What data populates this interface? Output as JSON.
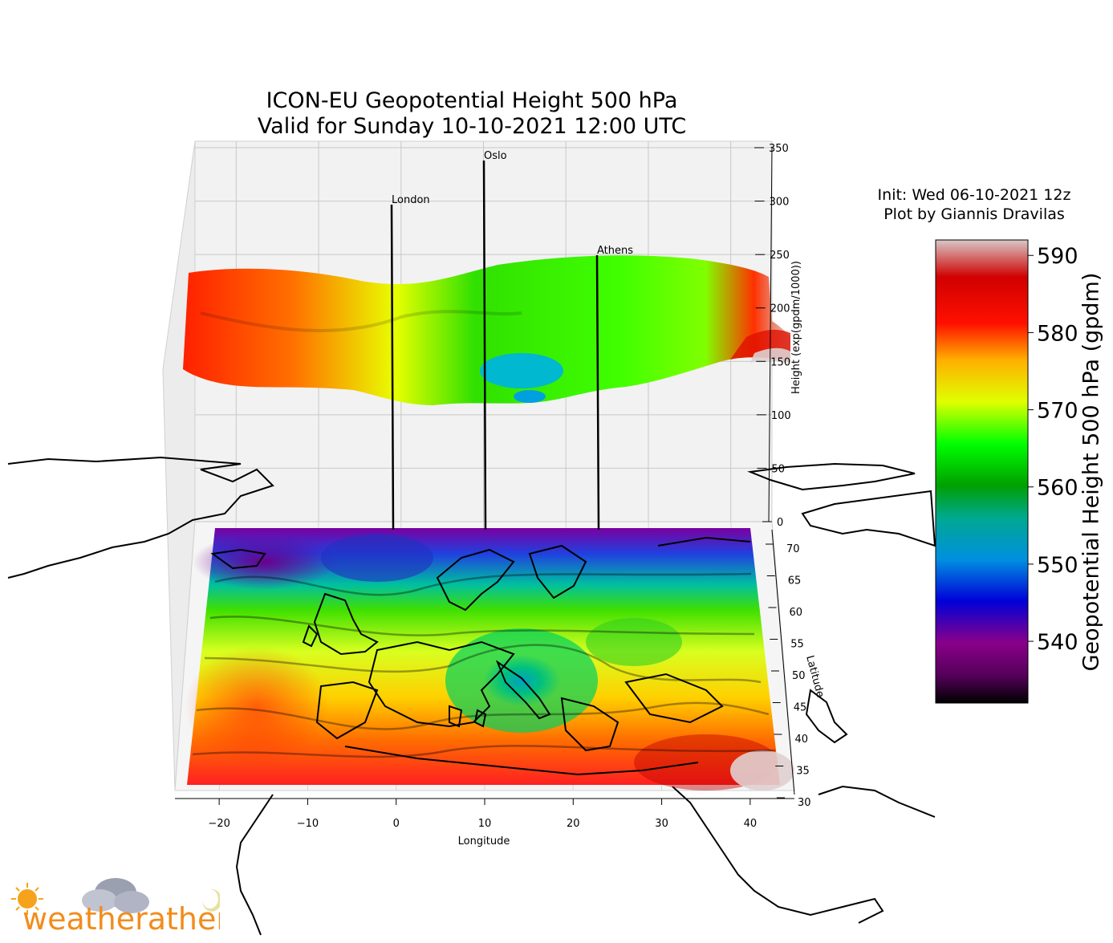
{
  "chart": {
    "title_line1": "ICON-EU Geopotential Height 500 hPa",
    "title_line2": "Valid for Sunday 10-10-2021 12:00 UTC",
    "init_line": "Init: Wed 06-10-2021 12z",
    "author_line": "Plot by Giannis Dravilas",
    "watermark": "weatherathens"
  },
  "chart_data": {
    "type": "surface",
    "xlabel": "Longitude",
    "ylabel": "Latitude",
    "zlabel": "Height (exp(gpdm/1000))",
    "xlim": [
      -25,
      45
    ],
    "ylim": [
      30,
      72
    ],
    "zlim": [
      0,
      350
    ],
    "x_ticks": [
      -20,
      -10,
      0,
      10,
      20,
      30,
      40
    ],
    "x_tick_labels": [
      "−20",
      "−10",
      "0",
      "10",
      "20",
      "30",
      "40"
    ],
    "y_ticks": [
      70,
      65,
      60,
      55,
      50,
      45,
      40,
      35,
      30
    ],
    "z_ticks": [
      0,
      50,
      100,
      150,
      200,
      250,
      300,
      350
    ],
    "colorbar": {
      "label": "Geopotential Height 500 hPa (gpdm)",
      "ticks": [
        540,
        550,
        560,
        570,
        580,
        590
      ],
      "range": [
        532,
        592
      ]
    },
    "cities": [
      {
        "name": "London",
        "lon": 0,
        "lat": 51.5,
        "height": 300
      },
      {
        "name": "Oslo",
        "lon": 10.7,
        "lat": 59.9,
        "height": 340
      },
      {
        "name": "Athens",
        "lon": 23.7,
        "lat": 38,
        "height": 250
      }
    ],
    "features": {
      "low_center": {
        "lon": 15,
        "lat": 48,
        "value_gpdm": 552
      },
      "north_trough": {
        "lon": -10,
        "lat": 68,
        "value_gpdm": 538
      },
      "southwest_ridge": {
        "lon": -20,
        "lat": 38,
        "value_gpdm": 582
      },
      "southeast_ridge": {
        "lon": 40,
        "lat": 34,
        "value_gpdm": 588
      }
    }
  },
  "colors": {
    "cmap": [
      "#000000",
      "#8a008a",
      "#0000d8",
      "#0090e0",
      "#00a890",
      "#00a000",
      "#00ff00",
      "#e0ff00",
      "#ffb000",
      "#ff1000",
      "#d00000",
      "#d8c8c8"
    ]
  }
}
